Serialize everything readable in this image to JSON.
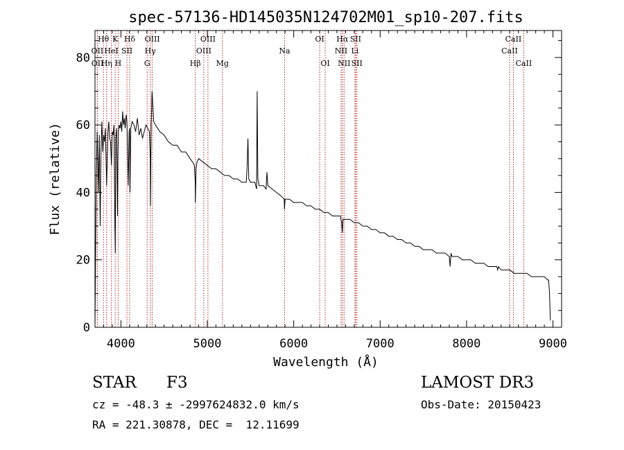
{
  "chart_data": {
    "type": "line",
    "title": "spec-57136-HD145035N124702M01_sp10-207.fits",
    "xlabel": "Wavelength (Å)",
    "ylabel": "Flux (relative)",
    "xlim": [
      3700,
      9100
    ],
    "ylim": [
      0,
      88
    ],
    "xticks": [
      4000,
      5000,
      6000,
      7000,
      8000,
      9000
    ],
    "yticks": [
      0,
      20,
      40,
      60,
      80
    ],
    "series": [
      {
        "name": "flux",
        "x": [
          3700,
          3705,
          3715,
          3725,
          3740,
          3750,
          3760,
          3770,
          3780,
          3790,
          3800,
          3810,
          3820,
          3835,
          3850,
          3860,
          3870,
          3880,
          3890,
          3900,
          3910,
          3920,
          3930,
          3935,
          3940,
          3950,
          3960,
          3965,
          3970,
          3980,
          3990,
          4000,
          4010,
          4020,
          4030,
          4040,
          4050,
          4060,
          4070,
          4085,
          4095,
          4101,
          4105,
          4115,
          4130,
          4150,
          4170,
          4190,
          4210,
          4230,
          4250,
          4270,
          4290,
          4310,
          4330,
          4340,
          4342,
          4350,
          4360,
          4380,
          4400,
          4450,
          4500,
          4550,
          4600,
          4650,
          4700,
          4750,
          4800,
          4830,
          4850,
          4860,
          4862,
          4870,
          4880,
          4900,
          4950,
          5000,
          5050,
          5100,
          5150,
          5200,
          5250,
          5300,
          5350,
          5400,
          5450,
          5460,
          5470,
          5480,
          5500,
          5550,
          5570,
          5577,
          5585,
          5600,
          5650,
          5680,
          5690,
          5700,
          5750,
          5800,
          5850,
          5890,
          5893,
          5900,
          5950,
          6000,
          6050,
          6100,
          6150,
          6200,
          6250,
          6300,
          6350,
          6400,
          6450,
          6500,
          6540,
          6555,
          6563,
          6570,
          6600,
          6650,
          6700,
          6750,
          6800,
          6850,
          6900,
          6950,
          7000,
          7050,
          7100,
          7150,
          7200,
          7250,
          7300,
          7350,
          7400,
          7450,
          7500,
          7550,
          7600,
          7650,
          7700,
          7750,
          7800,
          7810,
          7820,
          7830,
          7850,
          7900,
          7950,
          8000,
          8050,
          8100,
          8150,
          8200,
          8250,
          8300,
          8350,
          8360,
          8370,
          8400,
          8450,
          8500,
          8550,
          8600,
          8650,
          8700,
          8750,
          8800,
          8850,
          8900,
          8940,
          8950,
          8960,
          8970
        ],
        "values": [
          0,
          16,
          45,
          58,
          40,
          57,
          30,
          53,
          61,
          52,
          57,
          55,
          59,
          42,
          58,
          61,
          56,
          55,
          48,
          58,
          57,
          60,
          30,
          22,
          56,
          59,
          33,
          50,
          58,
          60,
          59,
          61,
          58,
          64,
          60,
          62,
          59,
          63,
          61,
          42,
          58,
          59,
          40,
          59,
          61,
          60,
          58,
          62,
          57,
          59,
          56,
          58,
          60,
          59,
          58,
          50,
          36,
          60,
          70,
          61,
          60,
          58,
          57,
          55,
          54,
          54,
          52,
          52,
          50,
          49,
          48,
          43,
          37,
          47,
          49,
          50,
          49,
          48,
          47,
          47,
          46,
          45,
          45,
          44,
          44,
          43,
          43,
          47,
          56,
          44,
          43,
          43,
          41,
          70,
          44,
          42,
          42,
          41,
          46,
          42,
          41,
          40,
          39,
          38,
          35,
          38,
          38,
          37,
          37,
          37,
          36,
          36,
          35,
          35,
          34,
          34,
          33,
          33,
          33,
          31,
          28,
          32,
          32,
          32,
          31,
          31,
          30,
          30,
          29,
          29,
          28,
          28,
          27,
          27,
          26,
          26,
          25,
          25,
          24,
          24,
          23,
          23,
          23,
          22,
          22,
          22,
          21,
          18,
          22,
          21,
          21,
          21,
          20,
          20,
          20,
          19,
          19,
          19,
          18,
          18,
          18,
          17,
          18,
          17,
          17,
          17,
          16,
          16,
          16,
          16,
          15,
          15,
          15,
          15,
          14,
          14,
          10,
          2
        ]
      }
    ],
    "lines": [
      {
        "label": "OII",
        "wl": 3727,
        "row": 2,
        "side": "top"
      },
      {
        "label": "OII",
        "wl": 3729,
        "row": 3,
        "side": "top"
      },
      {
        "label": "Hθ",
        "wl": 3798,
        "row": 1,
        "side": "top"
      },
      {
        "label": "Hη",
        "wl": 3835,
        "row": 3,
        "side": "top"
      },
      {
        "label": "HeI",
        "wl": 3889,
        "row": 2,
        "side": "top"
      },
      {
        "label": "K",
        "wl": 3934,
        "row": 1,
        "side": "top"
      },
      {
        "label": "H",
        "wl": 3968,
        "row": 3,
        "side": "top"
      },
      {
        "label": "SII",
        "wl": 4070,
        "row": 2,
        "side": "top"
      },
      {
        "label": "Hδ",
        "wl": 4101,
        "row": 1,
        "side": "top"
      },
      {
        "label": "G",
        "wl": 4304,
        "row": 3,
        "side": "top"
      },
      {
        "label": "Hγ",
        "wl": 4340,
        "row": 2,
        "side": "top"
      },
      {
        "label": "OIII",
        "wl": 4363,
        "row": 1,
        "side": "top"
      },
      {
        "label": "Hβ",
        "wl": 4861,
        "row": 3,
        "side": "top"
      },
      {
        "label": "OIII",
        "wl": 4959,
        "row": 2,
        "side": "top"
      },
      {
        "label": "OIII",
        "wl": 5007,
        "row": 1,
        "side": "top"
      },
      {
        "label": "Mg",
        "wl": 5175,
        "row": 3,
        "side": "top"
      },
      {
        "label": "Na",
        "wl": 5894,
        "row": 2,
        "side": "top"
      },
      {
        "label": "OI",
        "wl": 6300,
        "row": 1,
        "side": "top"
      },
      {
        "label": "OI",
        "wl": 6364,
        "row": 3,
        "side": "top"
      },
      {
        "label": "NII",
        "wl": 6548,
        "row": 2,
        "side": "top"
      },
      {
        "label": "Hα",
        "wl": 6563,
        "row": 1,
        "side": "top"
      },
      {
        "label": "NII",
        "wl": 6583,
        "row": 3,
        "side": "top"
      },
      {
        "label": "Li",
        "wl": 6708,
        "row": 2,
        "side": "top"
      },
      {
        "label": "SII",
        "wl": 6716,
        "row": 1,
        "side": "top"
      },
      {
        "label": "SII",
        "wl": 6731,
        "row": 3,
        "side": "top"
      },
      {
        "label": "CaII",
        "wl": 8498,
        "row": 2,
        "side": "top"
      },
      {
        "label": "CaII",
        "wl": 8542,
        "row": 1,
        "side": "top"
      },
      {
        "label": "CaII",
        "wl": 8662,
        "row": 3,
        "side": "top"
      }
    ]
  },
  "info": {
    "object_class": "STAR",
    "subclass": "F3",
    "survey": "LAMOST DR3",
    "cz_line": "cz = -48.3 ± -2997624832.0 km/s",
    "obs_date_line": "Obs-Date: 20150423",
    "coords_line": "RA = 221.30878, DEC =  12.11699"
  },
  "colors": {
    "spectrum": "#000000",
    "line_markers": "#b22222",
    "axes": "#000000"
  }
}
